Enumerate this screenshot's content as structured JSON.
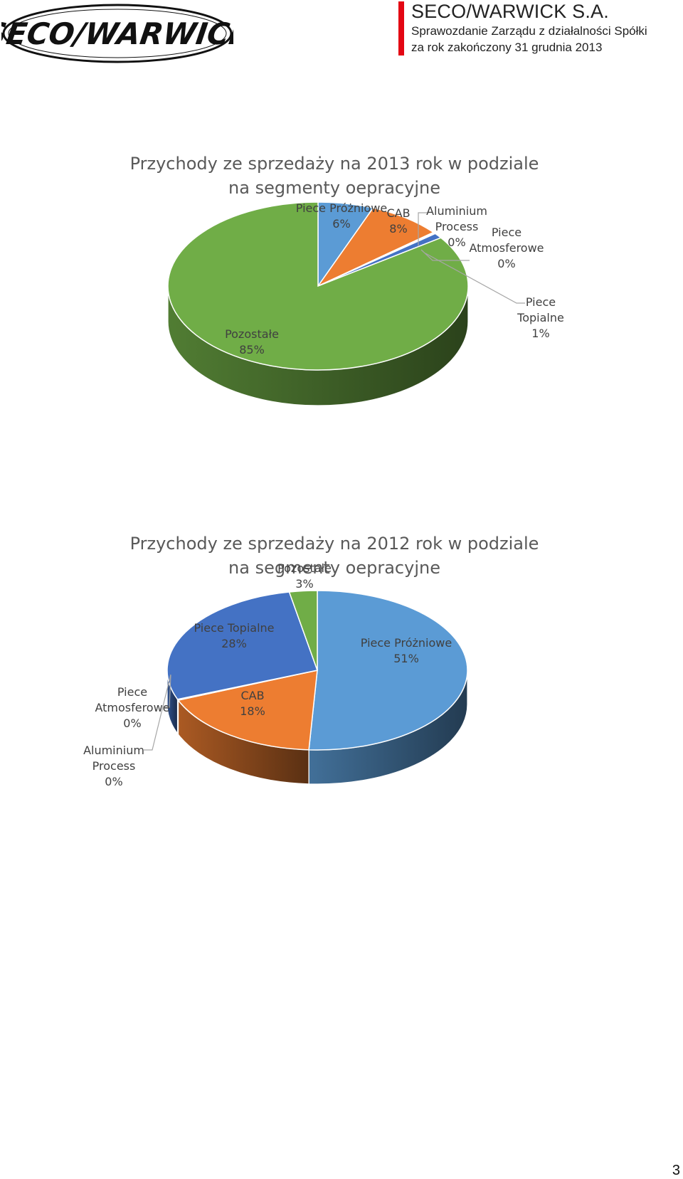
{
  "header": {
    "logo_text": "SECO/WARWICK",
    "company": "SECO/WARWICK S.A.",
    "report_line1": "Sprawozdanie Zarządu z działalności Spółki",
    "report_line2": "za rok zakończony 31 grudnia 2013"
  },
  "page_number": "3",
  "chart_data": [
    {
      "type": "pie",
      "style": "3d",
      "title": "Przychody ze sprzedaży na 2013 rok w podziale",
      "subtitle": "na segmenty oepracyjne",
      "slices": [
        {
          "name": "Piece Próżniowe",
          "label": "6%",
          "value": 6,
          "color": "#5b9bd5",
          "label_parts": [
            "Piece Próżniowe",
            "6%"
          ]
        },
        {
          "name": "CAB",
          "label": "8%",
          "value": 8,
          "color": "#ed7d31",
          "label_parts": [
            "CAB",
            "8%"
          ]
        },
        {
          "name": "Aluminium Process",
          "label": "0%",
          "value": 0.15,
          "color": "#a5a5a5",
          "label_parts": [
            "Aluminium",
            "Process",
            "0%"
          ]
        },
        {
          "name": "Piece Atmosferowe",
          "label": "0%",
          "value": 0.15,
          "color": "#ffc000",
          "label_parts": [
            "Piece",
            "Atmosferowe",
            "0%"
          ]
        },
        {
          "name": "Piece Topialne",
          "label": "1%",
          "value": 1,
          "color": "#4472c4",
          "label_parts": [
            "Piece",
            "Topialne",
            "1%"
          ]
        },
        {
          "name": "Pozostałe",
          "label": "85%",
          "value": 85,
          "color": "#70ad47",
          "label_parts": [
            "Pozostałe",
            "85%"
          ]
        }
      ]
    },
    {
      "type": "pie",
      "style": "3d",
      "title": "Przychody ze sprzedaży na 2012 rok w podziale",
      "subtitle": "na segmenty oepracyjne",
      "slices": [
        {
          "name": "Piece Próżniowe",
          "label": "51%",
          "value": 51,
          "color": "#5b9bd5",
          "label_parts": [
            "Piece Próżniowe",
            "51%"
          ]
        },
        {
          "name": "CAB",
          "label": "18%",
          "value": 18,
          "color": "#ed7d31",
          "label_parts": [
            "CAB",
            "18%"
          ]
        },
        {
          "name": "Aluminium Process",
          "label": "0%",
          "value": 0.1,
          "color": "#a5a5a5",
          "label_parts": [
            "Aluminium",
            "Process",
            "0%"
          ]
        },
        {
          "name": "Piece Atmosferowe",
          "label": "0%",
          "value": 0.1,
          "color": "#ffc000",
          "label_parts": [
            "Piece",
            "Atmosferowe",
            "0%"
          ]
        },
        {
          "name": "Piece Topialne",
          "label": "28%",
          "value": 28,
          "color": "#4472c4",
          "label_parts": [
            "Piece Topialne",
            "28%"
          ]
        },
        {
          "name": "Pozostałe",
          "label": "3%",
          "value": 3,
          "color": "#70ad47",
          "label_parts": [
            "Pozostałe",
            "3%"
          ]
        }
      ]
    }
  ]
}
